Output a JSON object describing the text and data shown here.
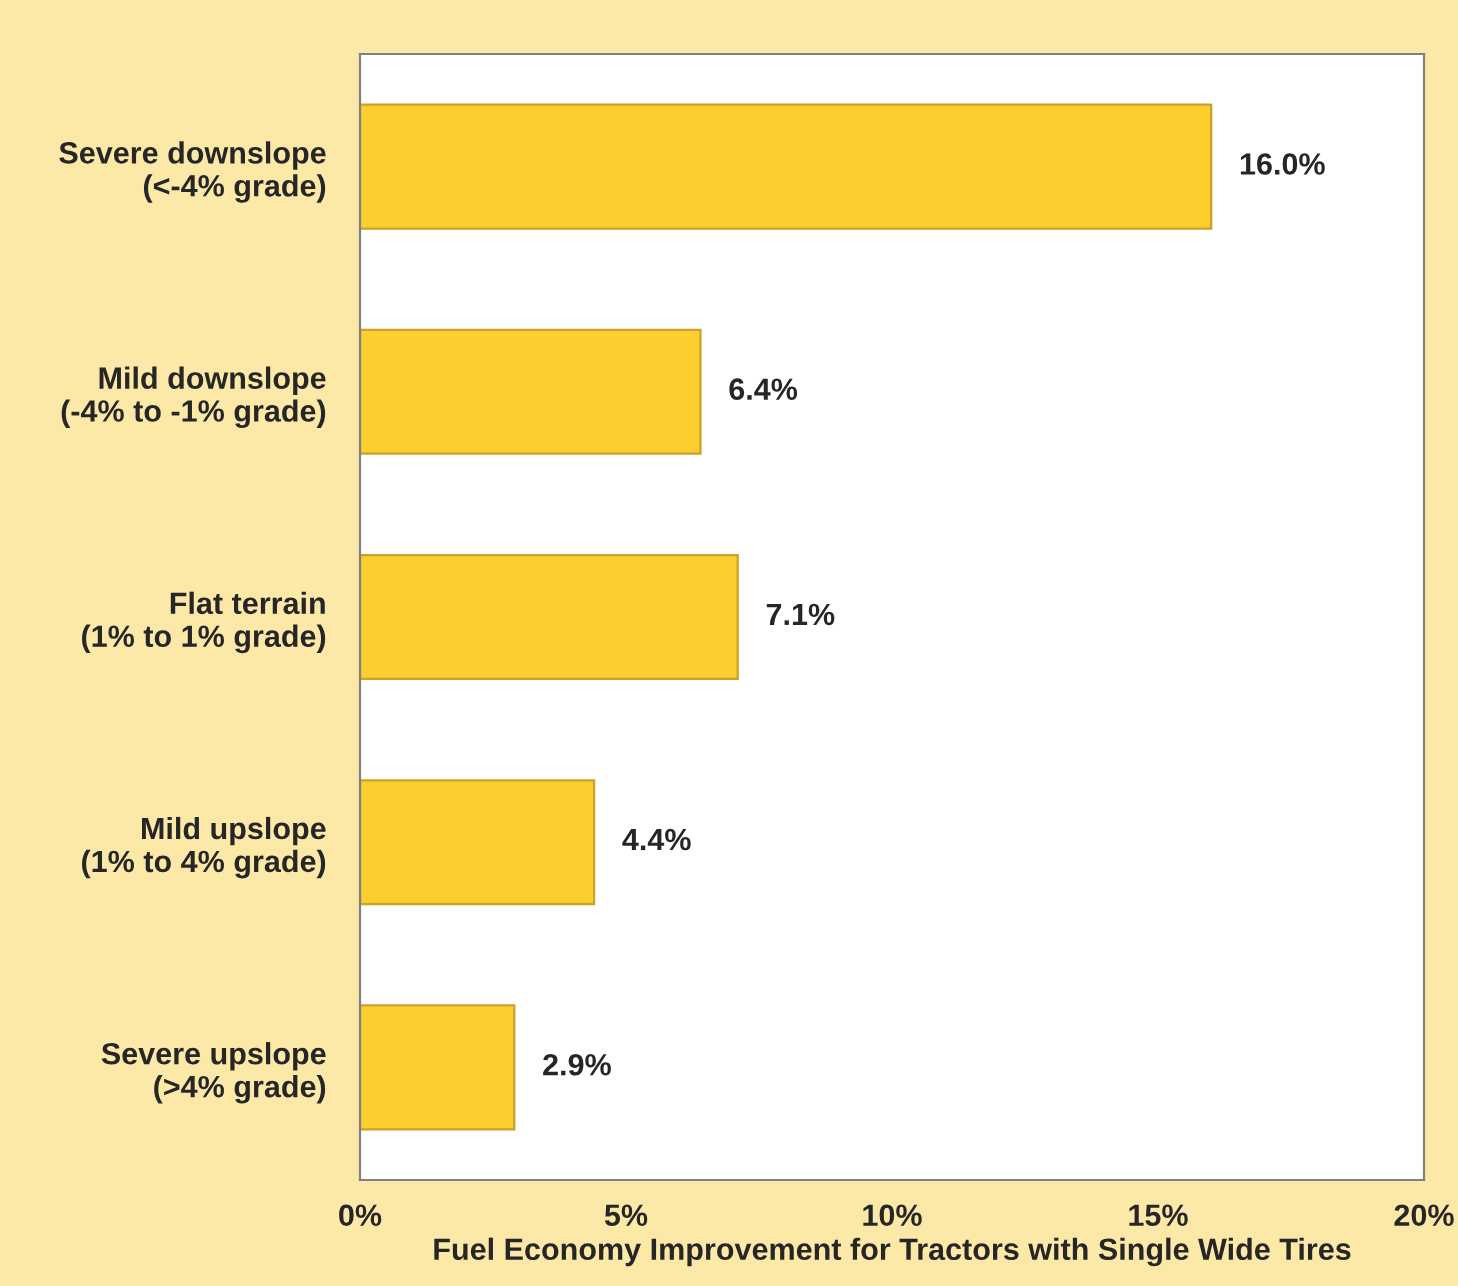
{
  "chart_data": {
    "type": "bar",
    "orientation": "horizontal",
    "xlabel": "Fuel Economy Improvement for Tractors with Single Wide Tires",
    "categories": [
      "Severe downslope\n(<-4% grade)",
      "Mild downslope\n(-4% to -1% grade)",
      "Flat terrain\n(1% to 1% grade)",
      "Mild upslope\n(1% to 4% grade)",
      "Severe upslope\n(>4% grade)"
    ],
    "values": [
      16.0,
      6.4,
      7.1,
      4.4,
      2.9
    ],
    "value_labels": [
      "16.0%",
      "6.4%",
      "7.1%",
      "4.4%",
      "2.9%"
    ],
    "color": "#fccf2f",
    "xlim": [
      0,
      20
    ],
    "xticks": [
      {
        "value": 0,
        "label": "0%"
      },
      {
        "value": 5,
        "label": "5%"
      },
      {
        "value": 10,
        "label": "10%"
      },
      {
        "value": 15,
        "label": "15%"
      },
      {
        "value": 20,
        "label": "20%"
      }
    ],
    "grid": false
  }
}
